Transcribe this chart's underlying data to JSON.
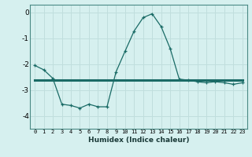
{
  "xlabel": "Humidex (Indice chaleur)",
  "background_color": "#d6f0ef",
  "grid_color": "#c0dedd",
  "line_color": "#1a6b66",
  "x_values": [
    0,
    1,
    2,
    3,
    4,
    5,
    6,
    7,
    8,
    9,
    10,
    11,
    12,
    13,
    14,
    15,
    16,
    17,
    18,
    19,
    20,
    21,
    22,
    23
  ],
  "curve1_y": [
    -2.05,
    -2.22,
    -2.55,
    -3.55,
    -3.6,
    -3.7,
    -3.55,
    -3.65,
    -3.65,
    -2.3,
    -1.5,
    -0.72,
    -0.2,
    -0.05,
    -0.55,
    -1.4,
    -2.58,
    -2.62,
    -2.68,
    -2.72,
    -2.68,
    -2.72,
    -2.78,
    -2.72
  ],
  "line_y": [
    -2.62,
    -2.62,
    -2.62,
    -2.62,
    -2.62,
    -2.62,
    -2.62,
    -2.62,
    -2.62,
    -2.62,
    -2.62,
    -2.62,
    -2.62,
    -2.62,
    -2.62,
    -2.62,
    -2.62,
    -2.62,
    -2.62,
    -2.62,
    -2.62,
    -2.62,
    -2.62,
    -2.62
  ],
  "ylim": [
    -4.5,
    0.3
  ],
  "xlim": [
    -0.5,
    23.5
  ],
  "yticks": [
    0,
    -1,
    -2,
    -3,
    -4
  ],
  "xticks": [
    0,
    1,
    2,
    3,
    4,
    5,
    6,
    7,
    8,
    9,
    10,
    11,
    12,
    13,
    14,
    15,
    16,
    17,
    18,
    19,
    20,
    21,
    22,
    23
  ],
  "xtick_labels": [
    "0",
    "1",
    "2",
    "3",
    "4",
    "5",
    "6",
    "7",
    "8",
    "9",
    "10",
    "11",
    "12",
    "13",
    "14",
    "15",
    "16",
    "17",
    "18",
    "19",
    "20",
    "21",
    "22",
    "23"
  ]
}
